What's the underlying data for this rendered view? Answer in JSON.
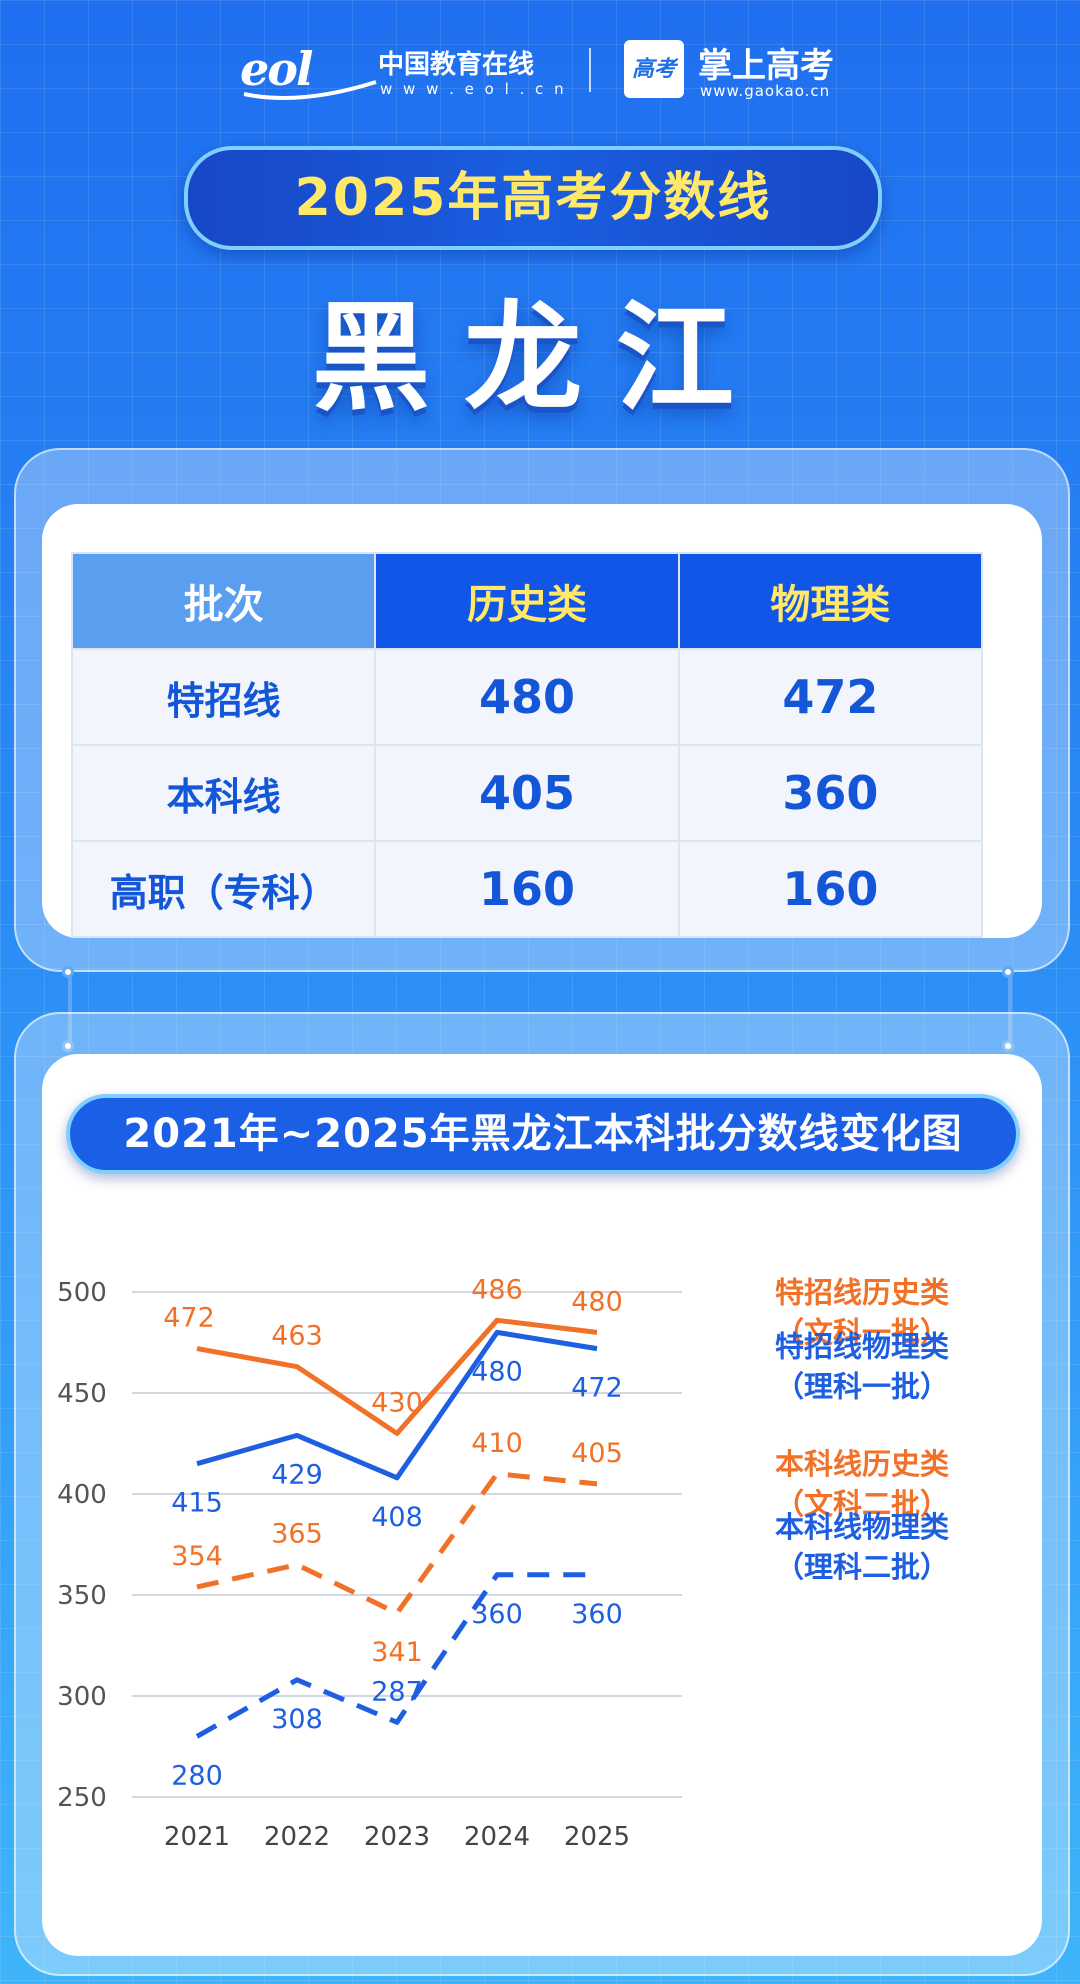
{
  "header": {
    "brand1_mark": "eol",
    "brand1_name": "中国教育在线",
    "brand1_url": "w w w . e o l . c n",
    "brand2_mark": "高考",
    "brand2_name": "掌上高考",
    "brand2_url": "www.gaokao.cn"
  },
  "banner_title": "2025年高考分数线",
  "province": "黑龙江",
  "score_table": {
    "headers": [
      "批次",
      "历史类",
      "物理类"
    ],
    "rows": [
      {
        "batch": "特招线",
        "history": "480",
        "physics": "472"
      },
      {
        "batch": "本科线",
        "history": "405",
        "physics": "360"
      },
      {
        "batch": "高职（专科）",
        "history": "160",
        "physics": "160"
      }
    ]
  },
  "colors": {
    "orange": "#f07127",
    "blue": "#1d5fe0",
    "accent_yellow": "#ffe86a"
  },
  "chart_data": {
    "type": "line",
    "title": "2021年~2025年黑龙江本科批分数线变化图",
    "x": [
      "2021",
      "2022",
      "2023",
      "2024",
      "2025"
    ],
    "ylim": [
      250,
      500
    ],
    "yticks": [
      250,
      300,
      350,
      400,
      450,
      500
    ],
    "grid": true,
    "legend": "right",
    "series": [
      {
        "name": "特招线历史类",
        "sub": "（文科一批）",
        "color": "#f07127",
        "style": "solid",
        "values": [
          472,
          463,
          430,
          486,
          480
        ]
      },
      {
        "name": "特招线物理类",
        "sub": "（理科一批）",
        "color": "#1d5fe0",
        "style": "solid",
        "values": [
          415,
          429,
          408,
          480,
          472
        ]
      },
      {
        "name": "本科线历史类",
        "sub": "（文科二批）",
        "color": "#f07127",
        "style": "dashed",
        "values": [
          354,
          365,
          341,
          410,
          405
        ]
      },
      {
        "name": "本科线物理类",
        "sub": "（理科二批）",
        "color": "#1d5fe0",
        "style": "dashed",
        "values": [
          280,
          308,
          287,
          360,
          360
        ]
      }
    ]
  }
}
